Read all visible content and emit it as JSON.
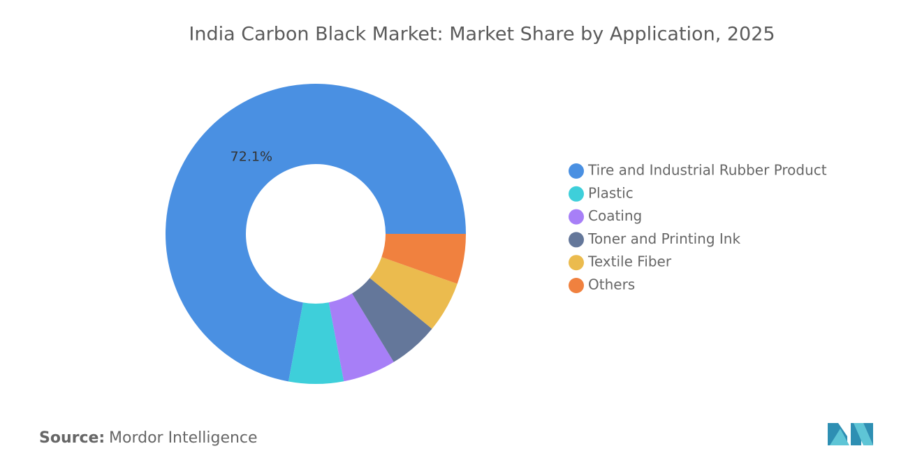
{
  "chart_data": {
    "type": "donut",
    "title": "India Carbon Black Market: Market Share by Application, 2025",
    "categories": [
      "Tire and Industrial Rubber Product",
      "Plastic",
      "Coating",
      "Toner and Printing Ink",
      "Textile Fiber",
      "Others"
    ],
    "values": [
      72.1,
      5.9,
      5.7,
      5.4,
      5.5,
      5.4
    ],
    "value_labels": [
      "72.1%",
      null,
      null,
      null,
      null,
      null
    ],
    "colors": [
      "#4a90e2",
      "#3ecfda",
      "#a77ff7",
      "#64779a",
      "#ebbb4e",
      "#f0813f"
    ],
    "legend": "right"
  },
  "source": {
    "label": "Source:",
    "text": "Mordor Intelligence"
  }
}
